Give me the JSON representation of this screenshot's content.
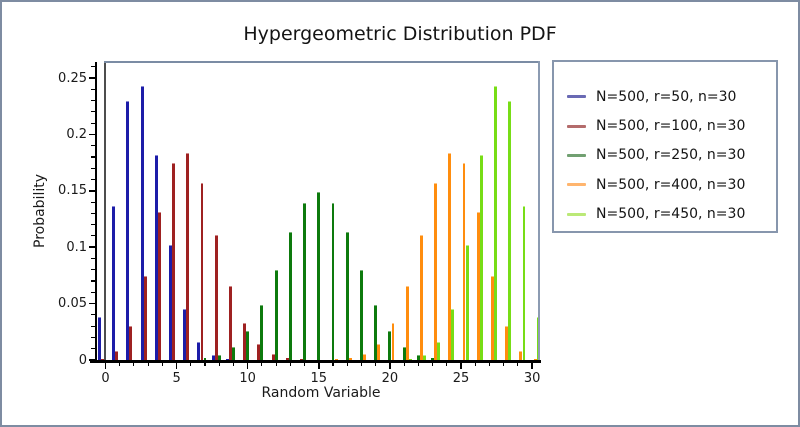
{
  "window": {
    "border_color": "#7E8CA2",
    "background": "#ffffff"
  },
  "chart_data": {
    "type": "bar",
    "title": "Hypergeometric Distribution PDF",
    "xlabel": "Random Variable",
    "ylabel": "Probability",
    "xlim": [
      0,
      30
    ],
    "ylim": [
      0,
      0.265
    ],
    "grid": false,
    "legend_position": "right",
    "x": [
      0,
      1,
      2,
      3,
      4,
      5,
      6,
      7,
      8,
      9,
      10,
      11,
      12,
      13,
      14,
      15,
      16,
      17,
      18,
      19,
      20,
      21,
      22,
      23,
      24,
      25,
      26,
      27,
      28,
      29,
      30
    ],
    "x_tick_values": [
      0,
      5,
      10,
      15,
      20,
      25,
      30
    ],
    "x_tick_labels": [
      "0",
      "5",
      "10",
      "15",
      "20",
      "25",
      "30"
    ],
    "y_tick_values": [
      0,
      0.05,
      0.1,
      0.15,
      0.2,
      0.25
    ],
    "y_tick_labels": [
      "0",
      "0.05",
      "0.1",
      "0.15",
      "0.2",
      "0.25"
    ],
    "series": [
      {
        "name": "N=500, r=50, n=30",
        "color": "#1C1CA8",
        "cap_color": "#8787D2",
        "legend_swatch_color": "#6A6AB4",
        "values": [
          0.0382,
          0.1363,
          0.2294,
          0.243,
          0.1818,
          0.1023,
          0.045,
          0.0159,
          0.0046,
          0.0011,
          0.0002,
          0,
          0,
          0,
          0,
          0,
          0,
          0,
          0,
          0,
          0,
          0,
          0,
          0,
          0,
          0,
          0,
          0,
          0,
          0,
          0
        ]
      },
      {
        "name": "N=500, r=100, n=30",
        "color": "#9E2121",
        "cap_color": "#CE8787",
        "legend_swatch_color": "#B46C6C",
        "values": [
          0.001,
          0.0079,
          0.0305,
          0.0748,
          0.131,
          0.1744,
          0.1836,
          0.157,
          0.111,
          0.0659,
          0.0331,
          0.0142,
          0.0053,
          0.0017,
          0.0005,
          0.0001,
          0,
          0,
          0,
          0,
          0,
          0,
          0,
          0,
          0,
          0,
          0,
          0,
          0,
          0,
          0
        ]
      },
      {
        "name": "N=500, r=250, n=30",
        "color": "#0D7A0D",
        "cap_color": "#74B274",
        "legend_swatch_color": "#71A071",
        "values": [
          0,
          0,
          0,
          0,
          0,
          0.0001,
          0.0004,
          0.0015,
          0.0046,
          0.0118,
          0.026,
          0.049,
          0.08,
          0.1131,
          0.1391,
          0.149,
          0.1391,
          0.1131,
          0.08,
          0.049,
          0.026,
          0.0118,
          0.0046,
          0.0015,
          0.0004,
          0.0001,
          0,
          0,
          0,
          0,
          0
        ]
      },
      {
        "name": "N=500, r=400, n=30",
        "color": "#FF8D0E",
        "cap_color": "#FFC684",
        "legend_swatch_color": "#FFB56E",
        "values": [
          0,
          0,
          0,
          0,
          0,
          0,
          0,
          0,
          0,
          0,
          0,
          0,
          0,
          0,
          0,
          0.0001,
          0.0005,
          0.0017,
          0.0053,
          0.0142,
          0.0331,
          0.0659,
          0.111,
          0.157,
          0.1836,
          0.1744,
          0.131,
          0.0748,
          0.0305,
          0.0079,
          0.001
        ]
      },
      {
        "name": "N=500, r=450, n=30",
        "color": "#77DD16",
        "cap_color": "#BDF084",
        "legend_swatch_color": "#BBE977",
        "values": [
          0,
          0,
          0,
          0,
          0,
          0,
          0,
          0,
          0,
          0,
          0,
          0,
          0,
          0,
          0,
          0,
          0,
          0,
          0,
          0,
          0.0002,
          0.0011,
          0.0046,
          0.0159,
          0.045,
          0.1023,
          0.1818,
          0.243,
          0.2294,
          0.1363,
          0.0382
        ]
      }
    ]
  }
}
